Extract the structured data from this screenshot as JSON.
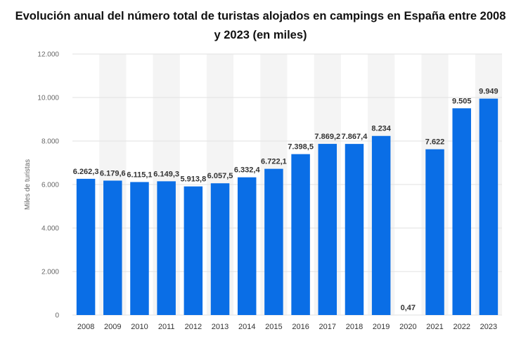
{
  "chart_data": {
    "type": "bar",
    "title": "Evolución anual del número total de turistas alojados en campings en España entre 2008 y 2023 (en miles)",
    "xlabel": "",
    "ylabel": "Miles de turistas",
    "categories": [
      "2008",
      "2009",
      "2010",
      "2011",
      "2012",
      "2013",
      "2014",
      "2015",
      "2016",
      "2017",
      "2018",
      "2019",
      "2020",
      "2021",
      "2022",
      "2023"
    ],
    "values": [
      6262.3,
      6179.6,
      6115.1,
      6149.3,
      5913.8,
      6057.5,
      6332.4,
      6722.1,
      7398.5,
      7869.2,
      7867.4,
      8234,
      0.47,
      7622,
      9505,
      9949
    ],
    "value_labels": [
      "6.262,3",
      "6.179,6",
      "6.115,1",
      "6.149,3",
      "5.913,8",
      "6.057,5",
      "6.332,4",
      "6.722,1",
      "7.398,5",
      "7.869,2",
      "7.867,4",
      "8.234",
      "0,47",
      "7.622",
      "9.505",
      "9.949"
    ],
    "ylim": [
      0,
      12000
    ],
    "yticks": [
      0,
      2000,
      4000,
      6000,
      8000,
      10000,
      12000
    ],
    "ytick_labels": [
      "0",
      "2.000",
      "4.000",
      "6.000",
      "8.000",
      "10.000",
      "12.000"
    ],
    "grid": true,
    "bar_color": "#0a6ee6"
  }
}
